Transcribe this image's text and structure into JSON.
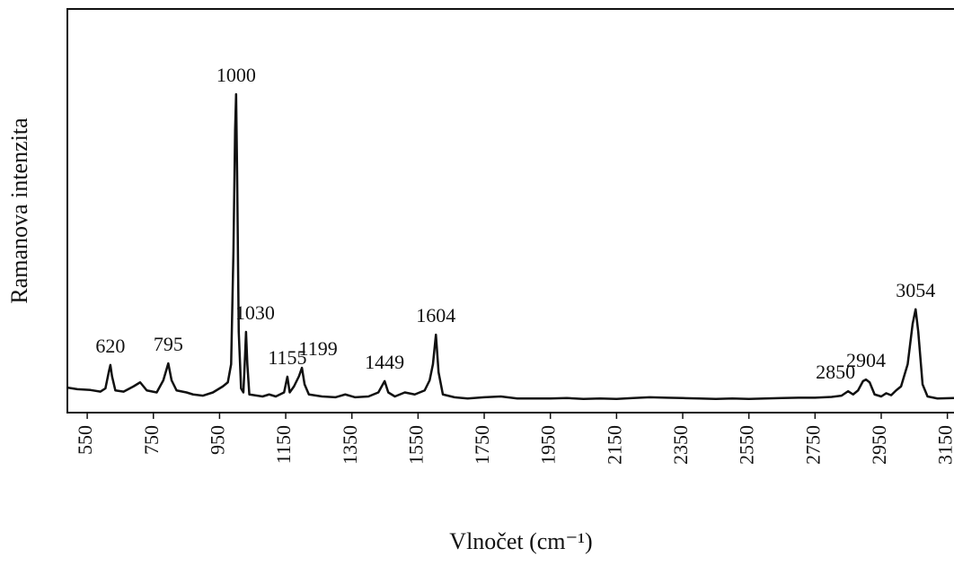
{
  "chart_data": {
    "type": "line",
    "xlabel": "Vlnočet (cm⁻¹)",
    "ylabel": "Ramanova intenzita",
    "xlim": [
      490,
      3170
    ],
    "ylim": [
      0,
      100
    ],
    "xticks": [
      550,
      750,
      950,
      1150,
      1350,
      1550,
      1750,
      1950,
      2150,
      2350,
      2550,
      2750,
      2950,
      3150
    ],
    "peak_labels": [
      620,
      795,
      1000,
      1030,
      1155,
      1199,
      1449,
      1604,
      2850,
      2904,
      3054
    ],
    "series": [
      {
        "color": "#111111",
        "x": [
          490,
          520,
          560,
          590,
          605,
          615,
          620,
          625,
          635,
          660,
          690,
          710,
          730,
          760,
          780,
          795,
          805,
          820,
          850,
          870,
          900,
          930,
          960,
          975,
          985,
          992,
          997,
          1000,
          1003,
          1008,
          1015,
          1022,
          1026,
          1030,
          1034,
          1040,
          1080,
          1100,
          1120,
          1145,
          1155,
          1162,
          1175,
          1190,
          1199,
          1207,
          1220,
          1260,
          1300,
          1330,
          1360,
          1400,
          1430,
          1449,
          1460,
          1480,
          1510,
          1540,
          1570,
          1585,
          1595,
          1604,
          1612,
          1625,
          1660,
          1700,
          1750,
          1800,
          1850,
          1900,
          1950,
          2000,
          2050,
          2100,
          2150,
          2200,
          2250,
          2300,
          2350,
          2400,
          2450,
          2500,
          2550,
          2600,
          2650,
          2700,
          2750,
          2800,
          2830,
          2850,
          2865,
          2880,
          2895,
          2904,
          2915,
          2930,
          2950,
          2965,
          2980,
          2995,
          3010,
          3030,
          3045,
          3054,
          3062,
          3075,
          3090,
          3120,
          3170
        ],
        "values": [
          6.2,
          5.8,
          5.6,
          5.2,
          6,
          10,
          11.8,
          9,
          5.5,
          5.2,
          6.5,
          7.5,
          5.5,
          5.0,
          8,
          12.2,
          8,
          5.5,
          5,
          4.5,
          4.2,
          5,
          6.5,
          7.5,
          12,
          40,
          70,
          78.9,
          60,
          20,
          6,
          5,
          12,
          20,
          12,
          4.5,
          4,
          4.5,
          4,
          5,
          8.9,
          5,
          6.5,
          9,
          11.1,
          7,
          4.5,
          4,
          3.8,
          4.5,
          3.8,
          4,
          5,
          7.8,
          5,
          4,
          5,
          4.5,
          5.5,
          8,
          12,
          19.3,
          10,
          4.5,
          3.8,
          3.5,
          3.8,
          4,
          3.5,
          3.5,
          3.5,
          3.6,
          3.4,
          3.5,
          3.4,
          3.6,
          3.8,
          3.7,
          3.6,
          3.5,
          3.4,
          3.5,
          3.4,
          3.5,
          3.6,
          3.7,
          3.7,
          3.9,
          4.2,
          5.3,
          4.5,
          5.5,
          7.8,
          8.2,
          7.5,
          4.5,
          4,
          4.8,
          4.3,
          5.5,
          6.5,
          12,
          22,
          25.6,
          20,
          7,
          4,
          3.5,
          3.6
        ]
      }
    ]
  }
}
